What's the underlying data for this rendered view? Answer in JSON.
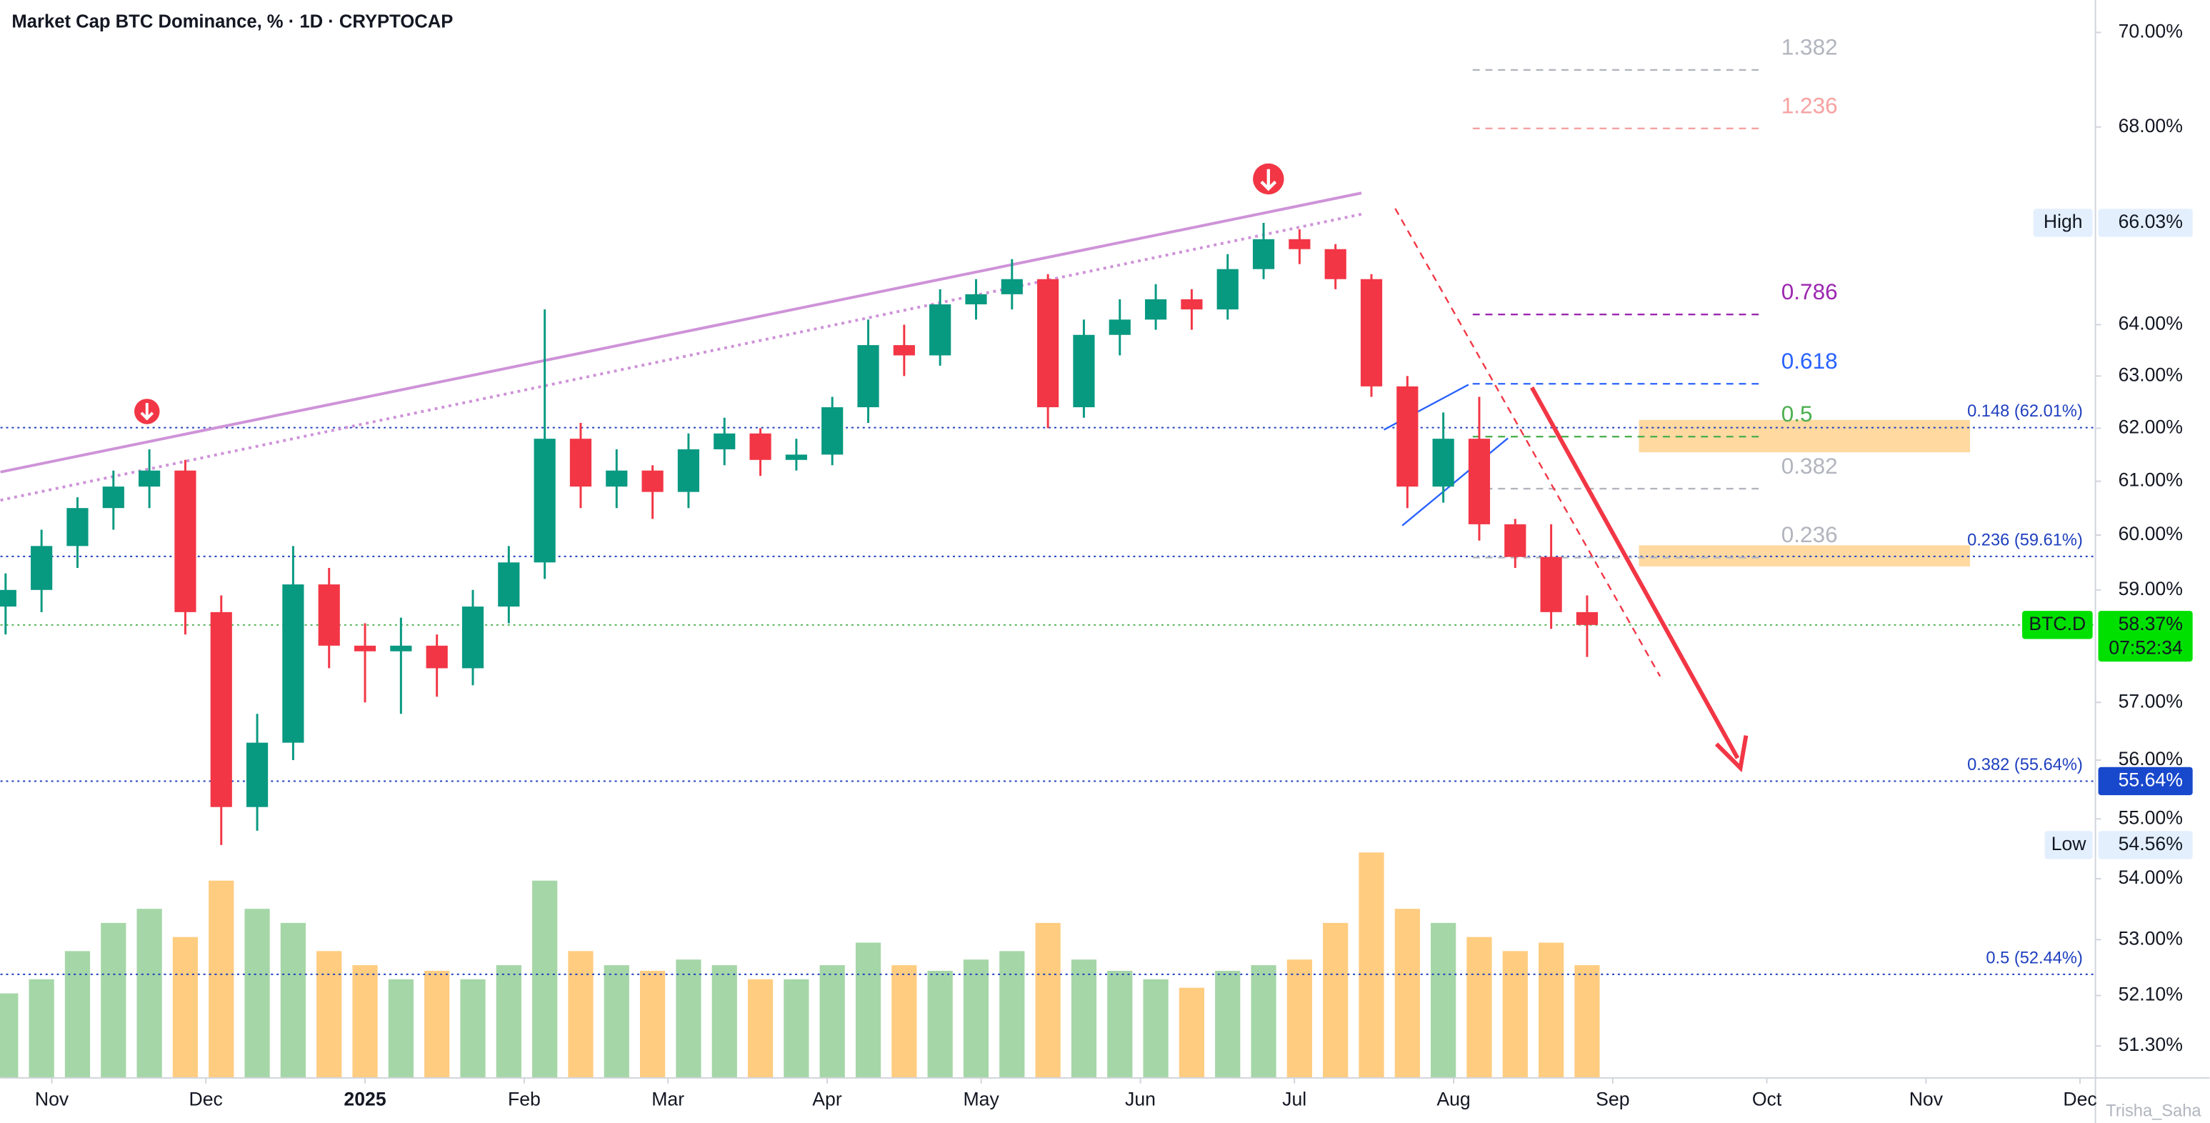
{
  "chart_data": {
    "type": "candlestick",
    "title": "Market Cap BTC Dominance, % · 1D · CRYPTOCAP",
    "watermark": "Trisha_Saha",
    "log_scale": true,
    "ylim": [
      50.8,
      70.7
    ],
    "yticks": [
      {
        "value": 70,
        "label": "70.00%"
      },
      {
        "value": 68,
        "label": "68.00%"
      },
      {
        "value": 64,
        "label": "64.00%"
      },
      {
        "value": 63,
        "label": "63.00%"
      },
      {
        "value": 62,
        "label": "62.00%"
      },
      {
        "value": 61,
        "label": "61.00%"
      },
      {
        "value": 60,
        "label": "60.00%"
      },
      {
        "value": 59,
        "label": "59.00%"
      },
      {
        "value": 57,
        "label": "57.00%"
      },
      {
        "value": 56,
        "label": "56.00%"
      },
      {
        "value": 55,
        "label": "55.00%"
      },
      {
        "value": 54,
        "label": "54.00%"
      },
      {
        "value": 53,
        "label": "53.00%"
      },
      {
        "value": 52.1,
        "label": "52.10%"
      },
      {
        "value": 51.3,
        "label": "51.30%"
      }
    ],
    "xlim": [
      -10,
      398
    ],
    "xticks": [
      {
        "value": 0,
        "label": "Nov"
      },
      {
        "value": 30,
        "label": "Dec"
      },
      {
        "value": 61,
        "label": "2025"
      },
      {
        "value": 92,
        "label": "Feb"
      },
      {
        "value": 120,
        "label": "Mar"
      },
      {
        "value": 151,
        "label": "Apr"
      },
      {
        "value": 181,
        "label": "May"
      },
      {
        "value": 212,
        "label": "Jun"
      },
      {
        "value": 242,
        "label": "Jul"
      },
      {
        "value": 273,
        "label": "Aug"
      },
      {
        "value": 304,
        "label": "Sep"
      },
      {
        "value": 334,
        "label": "Oct"
      },
      {
        "value": 365,
        "label": "Nov"
      },
      {
        "value": 395,
        "label": "Dec"
      }
    ],
    "up_color": "#089981",
    "down_color": "#f23645",
    "volume_up_color": "#a5d6a7",
    "volume_down_color": "#ffcc80",
    "volume_lim": [
      0,
      100
    ],
    "x": [
      -9,
      -2,
      5,
      12,
      19,
      26,
      33,
      40,
      47,
      54,
      61,
      68,
      75,
      82,
      89,
      96,
      103,
      110,
      117,
      124,
      131,
      138,
      145,
      152,
      159,
      166,
      173,
      180,
      187,
      194,
      201,
      208,
      215,
      222,
      229,
      236,
      243,
      250,
      257,
      264,
      271,
      278,
      285,
      292,
      299
    ],
    "open": [
      58.7,
      59.0,
      59.8,
      60.5,
      60.9,
      61.2,
      58.6,
      55.2,
      56.3,
      59.1,
      58.0,
      57.9,
      58.0,
      57.6,
      58.7,
      59.5,
      61.8,
      60.9,
      61.2,
      60.8,
      61.6,
      61.9,
      61.4,
      61.5,
      62.4,
      63.6,
      63.4,
      64.4,
      64.6,
      64.9,
      62.4,
      63.8,
      64.1,
      64.5,
      64.3,
      65.1,
      65.7,
      65.5,
      64.9,
      62.8,
      60.9,
      61.8,
      60.2,
      59.6,
      58.6
    ],
    "high": [
      59.3,
      60.1,
      60.7,
      61.2,
      61.6,
      61.4,
      58.9,
      56.8,
      59.8,
      59.4,
      58.4,
      58.5,
      58.2,
      59.0,
      59.8,
      64.3,
      62.1,
      61.6,
      61.3,
      61.9,
      62.2,
      62.0,
      61.8,
      62.6,
      64.1,
      64.0,
      64.7,
      64.9,
      65.3,
      65.0,
      64.1,
      64.5,
      64.8,
      64.7,
      65.4,
      66.03,
      65.9,
      65.6,
      65.0,
      63.0,
      62.3,
      62.6,
      60.3,
      60.2,
      58.9
    ],
    "low": [
      58.2,
      58.6,
      59.4,
      60.1,
      60.5,
      58.2,
      54.56,
      54.8,
      56.0,
      57.6,
      57.0,
      56.8,
      57.1,
      57.3,
      58.4,
      59.2,
      60.5,
      60.5,
      60.3,
      60.5,
      61.3,
      61.1,
      61.2,
      61.3,
      62.1,
      63.0,
      63.2,
      64.1,
      64.3,
      62.0,
      62.2,
      63.4,
      63.9,
      63.9,
      64.1,
      64.9,
      65.2,
      64.7,
      62.6,
      60.5,
      60.6,
      59.9,
      59.4,
      58.3,
      57.8
    ],
    "close": [
      59.0,
      59.8,
      60.5,
      60.9,
      61.2,
      58.6,
      55.2,
      56.3,
      59.1,
      58.0,
      57.9,
      58.0,
      57.6,
      58.7,
      59.5,
      61.8,
      60.9,
      61.2,
      60.8,
      61.6,
      61.9,
      61.4,
      61.5,
      62.4,
      63.6,
      63.4,
      64.4,
      64.6,
      64.9,
      62.4,
      63.8,
      64.1,
      64.5,
      64.3,
      65.1,
      65.7,
      65.5,
      64.9,
      62.8,
      60.9,
      61.8,
      60.2,
      59.6,
      58.6,
      58.37
    ],
    "volume": [
      30,
      35,
      45,
      55,
      60,
      50,
      70,
      60,
      55,
      45,
      40,
      35,
      38,
      35,
      40,
      70,
      45,
      40,
      38,
      42,
      40,
      35,
      35,
      40,
      48,
      40,
      38,
      42,
      45,
      55,
      42,
      38,
      35,
      32,
      38,
      40,
      42,
      55,
      80,
      60,
      55,
      50,
      45,
      48,
      40
    ],
    "fib_levels": [
      {
        "label": "1.382",
        "value": 69.2,
        "color": "#b2b5be"
      },
      {
        "label": "1.236",
        "value": 67.97,
        "color": "#f7a1a1"
      },
      {
        "label": "0.786",
        "value": 64.2,
        "color": "#9c27b0"
      },
      {
        "label": "0.618",
        "value": 62.85,
        "color": "#2962ff"
      },
      {
        "label": "0.5",
        "value": 61.84,
        "color": "#4caf50"
      },
      {
        "label": "0.382",
        "value": 60.86,
        "color": "#b2b5be"
      },
      {
        "label": "0.236",
        "value": 59.59,
        "color": "#b2b5be"
      }
    ],
    "levels": [
      {
        "label": "0.148 (62.01%)",
        "value": 62.01
      },
      {
        "label": "0.236 (59.61%)",
        "value": 59.61
      },
      {
        "label": "0.382 (55.64%)",
        "value": 55.64
      },
      {
        "label": "0.5 (52.44%)",
        "value": 52.44
      }
    ],
    "level_color": "#1e3fbf",
    "current_line_color": "#4caf50",
    "markers": [
      {
        "label": "High",
        "value": 66.03,
        "value_label": "66.03%"
      },
      {
        "label": "BTC.D",
        "value": 58.37,
        "value_label": "58.37%",
        "countdown": "07:52:34"
      },
      {
        "value": 55.64,
        "value_label": "55.64%"
      },
      {
        "label": "Low",
        "value": 54.56,
        "value_label": "54.56%"
      }
    ]
  }
}
